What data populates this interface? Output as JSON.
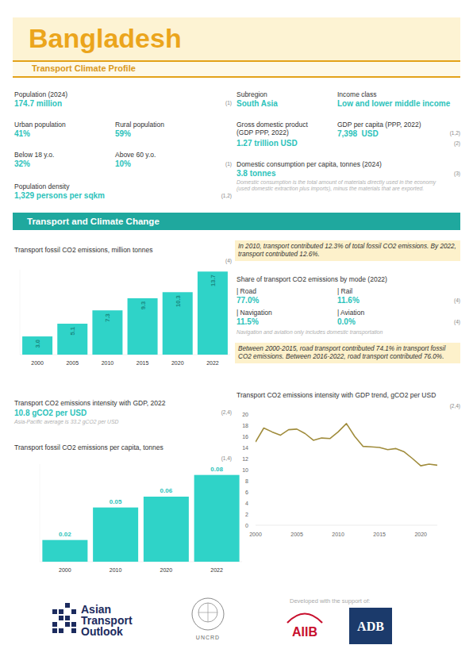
{
  "header": {
    "title": "Bangladesh",
    "subtitle": "Transport Climate Profile"
  },
  "stats": [
    {
      "label": "Population (2024)",
      "value": "174.7 million",
      "source": "(1)"
    },
    {
      "label": "Urban population",
      "value": "41%"
    },
    {
      "label": "Rural population",
      "value": "59%"
    },
    {
      "label": "Below 18 y.o.",
      "value": "32%"
    },
    {
      "label": "Above 60 y.o.",
      "value": "10%",
      "source": "(1)"
    },
    {
      "label": "Population density",
      "value": "1,329 persons per sqkm",
      "source": "(1,2)"
    },
    {
      "label": "Subregion",
      "value": "South Asia"
    },
    {
      "label": "Income class",
      "value": "Low and lower middle income"
    },
    {
      "label": "Gross domestic product (GDP PPP, 2022)",
      "value": "1.27 trillion USD",
      "source": "(2)"
    },
    {
      "label": "GDP per capita (PPP, 2022)",
      "value": "7,398  USD",
      "source": "(1,2)"
    },
    {
      "label": "Domestic consumption per capita, tonnes (2024)",
      "value": "3.8 tonnes",
      "source": "(3)",
      "note": "Domestic consumption is the total amount of materials directly used in the economy (used domestic extraction plus imports), minus the materials that are exported."
    }
  ],
  "section": "Transport and Climate Change",
  "highlights": [
    "In 2010, transport contributed 12.3% of total fossil CO2 emissions. By 2022, transport contributed 12.6%.",
    "Between 2000-2015, road transport contributed 74.1% in transport fossil CO2 emissions. Between 2016-2022, road transport contributed 76.0%."
  ],
  "mode_share": {
    "title": "Share of transport CO2 emissions by mode (2022)",
    "items": [
      {
        "label": "| Road",
        "value": "77.0%"
      },
      {
        "label": "| Rail",
        "value": "11.6%"
      },
      {
        "label": "| Navigation",
        "value": "11.5%"
      },
      {
        "label": "| Aviation",
        "value": "0.0%"
      }
    ],
    "sources": [
      "(4)",
      "(4)"
    ],
    "note": "Navigation and aviation only includes domestic transportation"
  },
  "intensity": {
    "title": "Transport CO2 emissions intensity with GDP, 2022",
    "value": "10.8 gCO2 per USD",
    "source": "(2,4)",
    "note": "Asia-Pacific average is 33.2 gCO2 per USD"
  },
  "chart_data": [
    {
      "type": "bar",
      "title": "Transport fossil CO2 emissions, million tonnes",
      "source": "(4)",
      "categories": [
        "2000",
        "2005",
        "2010",
        "2015",
        "2020",
        "2022"
      ],
      "values": [
        3.0,
        5.1,
        7.3,
        9.3,
        10.3,
        13.7
      ],
      "value_labels": [
        "3.0",
        "5.1",
        "7.3",
        "9.3",
        "10.3",
        "13.7"
      ],
      "color": "#2fd3c8",
      "ylim": [
        0,
        14
      ],
      "grid": false,
      "data_labels": true,
      "tick_labels": "x"
    },
    {
      "type": "bar",
      "title": "Transport fossil CO2 emissions per capita, tonnes",
      "source": "(1,4)",
      "categories": [
        "2000",
        "2010",
        "2020",
        "2022"
      ],
      "values": [
        0.02,
        0.05,
        0.06,
        0.08
      ],
      "color": "#2fd3c8",
      "ylim": [
        0,
        0.09
      ],
      "grid": false,
      "data_labels": true,
      "tick_labels": "x"
    },
    {
      "type": "line",
      "title": "Transport CO2 emissions intensity with GDP trend, gCO2 per USD",
      "source": "(2,4)",
      "x": [
        2000,
        2001,
        2002,
        2003,
        2004,
        2005,
        2006,
        2007,
        2008,
        2009,
        2010,
        2011,
        2012,
        2013,
        2014,
        2015,
        2016,
        2017,
        2018,
        2019,
        2020,
        2021,
        2022
      ],
      "values": [
        15.0,
        17.5,
        16.8,
        16.2,
        17.2,
        17.3,
        16.5,
        15.3,
        15.7,
        15.6,
        16.8,
        18.3,
        16.0,
        14.2,
        14.1,
        14.0,
        13.6,
        13.8,
        13.2,
        12.0,
        10.7,
        11.0,
        10.8
      ],
      "color": "#a08c3c",
      "xlim": [
        2000,
        2022
      ],
      "xticks": [
        2000,
        2005,
        2010,
        2015,
        2020
      ],
      "ylim": [
        0,
        20
      ],
      "yticks": [
        0,
        2,
        4,
        6,
        8,
        10,
        12,
        14,
        16,
        18,
        20
      ],
      "grid": false
    }
  ],
  "footer": {
    "ato": [
      "Asian",
      "Transport",
      "Outlook"
    ],
    "uncrd": "UNCRD",
    "support": "Developed with the support of:",
    "aiib": "AIIB",
    "adb": "ADB"
  }
}
